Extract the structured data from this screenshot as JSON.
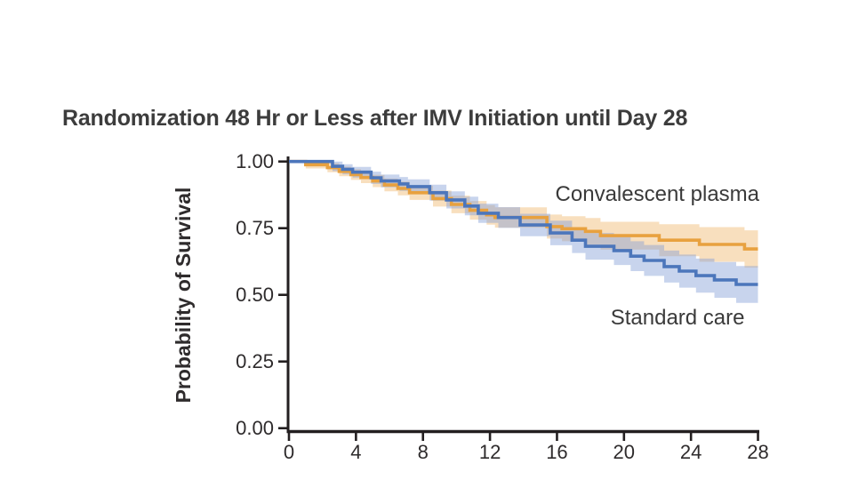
{
  "title": "Randomization 48 Hr or Less after IMV Initiation until Day 28",
  "chart_data": {
    "type": "line",
    "subtype": "kaplan-meier-step-with-confidence-bands",
    "title": "Randomization 48 Hr or Less after IMV Initiation until Day 28",
    "xlabel": "",
    "ylabel": "Probability of Survival",
    "xlim": [
      0,
      28
    ],
    "ylim": [
      0.0,
      1.0
    ],
    "grid": false,
    "legend_position": "labels-annotated-on-plot",
    "x_ticks": [
      {
        "value": 0,
        "label": "0"
      },
      {
        "value": 4,
        "label": "4"
      },
      {
        "value": 8,
        "label": "8"
      },
      {
        "value": 12,
        "label": "12"
      },
      {
        "value": 16,
        "label": "16"
      },
      {
        "value": 20,
        "label": "20"
      },
      {
        "value": 24,
        "label": "24"
      },
      {
        "value": 28,
        "label": "28"
      }
    ],
    "y_ticks": [
      {
        "value": 1.0,
        "label": "1.00"
      },
      {
        "value": 0.75,
        "label": "0.75"
      },
      {
        "value": 0.5,
        "label": "0.50"
      },
      {
        "value": 0.25,
        "label": "0.25"
      },
      {
        "value": 0.0,
        "label": "0.00"
      }
    ],
    "series": [
      {
        "name": "Convalescent plasma",
        "line_color": "#E8A13F",
        "band_color": "rgba(240,184,110,0.45)",
        "x": [
          0,
          1.0,
          2.3,
          3.0,
          3.7,
          4.3,
          5.0,
          5.7,
          6.5,
          7.2,
          8.6,
          9.7,
          10.8,
          11.8,
          12.3,
          15.4,
          16.3,
          17.7,
          18.6,
          22.1,
          24.5,
          27.2,
          28
        ],
        "y": [
          1.0,
          0.988,
          0.977,
          0.963,
          0.951,
          0.94,
          0.927,
          0.912,
          0.899,
          0.883,
          0.861,
          0.839,
          0.817,
          0.8,
          0.79,
          0.756,
          0.748,
          0.738,
          0.722,
          0.705,
          0.689,
          0.672,
          0.672
        ],
        "ci_halfwidth": [
          0,
          0.014,
          0.017,
          0.018,
          0.02,
          0.021,
          0.023,
          0.024,
          0.026,
          0.027,
          0.03,
          0.033,
          0.035,
          0.037,
          0.038,
          0.045,
          0.047,
          0.05,
          0.052,
          0.06,
          0.065,
          0.07,
          0.072
        ]
      },
      {
        "name": "Standard care",
        "line_color": "#4C76BB",
        "band_color": "rgba(132,160,214,0.45)",
        "x": [
          0,
          2.6,
          3.2,
          3.8,
          4.9,
          5.5,
          6.6,
          7.1,
          8.4,
          9.4,
          10.5,
          11.3,
          12.5,
          13.8,
          15.6,
          16.9,
          17.7,
          19.4,
          20.4,
          21.2,
          22.4,
          23.3,
          24.3,
          25.4,
          26.7,
          28
        ],
        "y": [
          1.0,
          0.982,
          0.971,
          0.96,
          0.939,
          0.927,
          0.916,
          0.906,
          0.883,
          0.856,
          0.833,
          0.806,
          0.79,
          0.762,
          0.732,
          0.705,
          0.682,
          0.666,
          0.645,
          0.629,
          0.606,
          0.589,
          0.572,
          0.556,
          0.539,
          0.539
        ],
        "ci_halfwidth": [
          0,
          0.018,
          0.019,
          0.02,
          0.023,
          0.024,
          0.026,
          0.027,
          0.03,
          0.032,
          0.035,
          0.036,
          0.039,
          0.042,
          0.046,
          0.048,
          0.05,
          0.054,
          0.056,
          0.058,
          0.06,
          0.062,
          0.064,
          0.067,
          0.069,
          0.072
        ]
      }
    ],
    "annotations": [
      {
        "text": "Convalescent plasma",
        "x_day": 15.9,
        "y_prob": 0.875
      },
      {
        "text": "Standard care",
        "x_day": 19.2,
        "y_prob": 0.412
      }
    ],
    "axis_color": "#231F20"
  }
}
